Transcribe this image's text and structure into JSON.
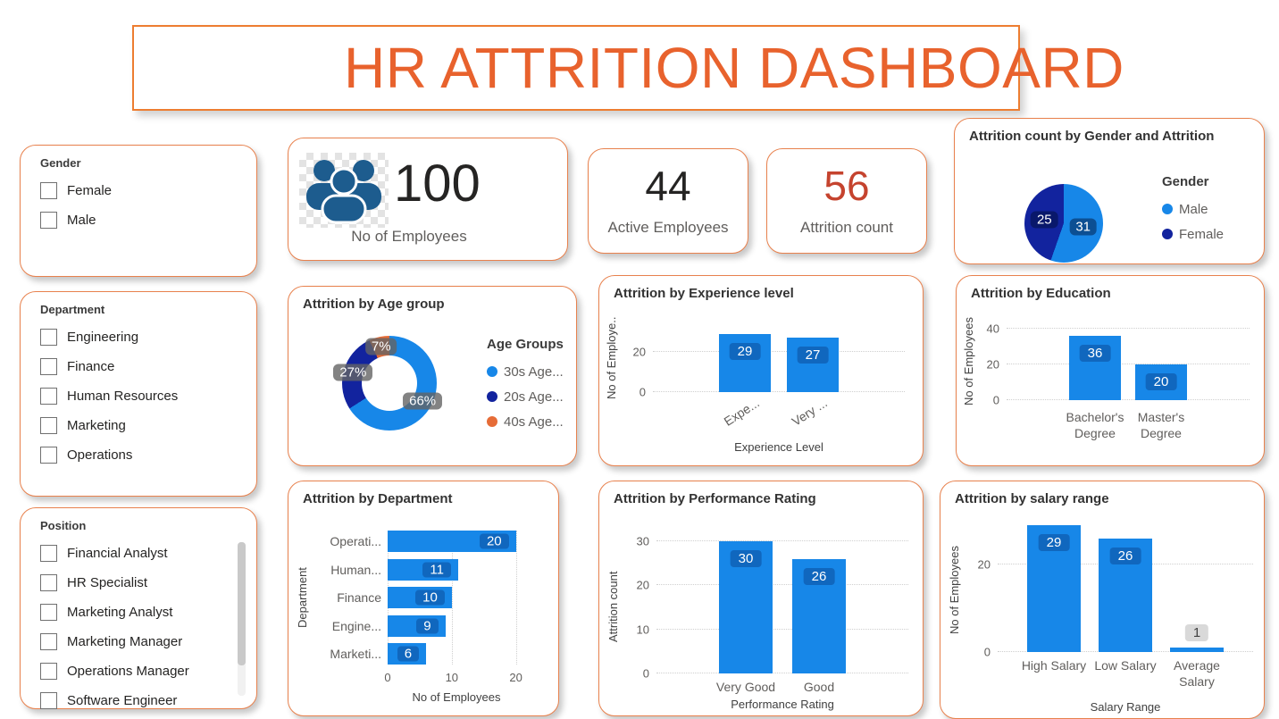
{
  "header": {
    "title": "HR ATTRITION DASHBOARD"
  },
  "filters": [
    {
      "title": "Gender",
      "items": [
        "Female",
        "Male"
      ]
    },
    {
      "title": "Department",
      "items": [
        "Engineering",
        "Finance",
        "Human Resources",
        "Marketing",
        "Operations"
      ]
    },
    {
      "title": "Position",
      "items": [
        "Financial Analyst",
        "HR Specialist",
        "Marketing Analyst",
        "Marketing Manager",
        "Operations Manager",
        "Software Engineer"
      ]
    }
  ],
  "kpis": {
    "employees": {
      "value": "100",
      "label": "No of Employees",
      "icon": "people-icon"
    },
    "active": {
      "value": "44",
      "label": "Active Employees"
    },
    "attrition": {
      "value": "56",
      "label": "Attrition count",
      "color": "#C5432E"
    }
  },
  "colors": {
    "bar_blue": "#1787E8",
    "navy": "#12239E",
    "orange": "#E66C37",
    "card_border": "#E8814D",
    "header_orange": "#E8622D",
    "attrition_red": "#C5432E",
    "icon_blue": "#1D5C8E"
  },
  "chart_data": [
    {
      "type": "pie",
      "title": "Attrition count by Gender and Attrition",
      "legend_title": "Gender",
      "categories": [
        "Male",
        "Female"
      ],
      "values": [
        31,
        25
      ],
      "labels": [
        "31",
        "25"
      ],
      "colors": [
        "#1787E8",
        "#12239E"
      ],
      "legend_position": "right"
    },
    {
      "type": "pie",
      "subtype": "donut",
      "title": "Attrition by Age group",
      "legend_title": "Age Groups",
      "categories": [
        "30s Age...",
        "20s Age...",
        "40s Age..."
      ],
      "values": [
        66,
        27,
        7
      ],
      "labels": [
        "66%",
        "27%",
        "7%"
      ],
      "colors": [
        "#1787E8",
        "#12239E",
        "#E66C37"
      ],
      "legend_position": "right"
    },
    {
      "type": "bar",
      "title": "Attrition by Experience level",
      "categories": [
        "Expe...",
        "Very ..."
      ],
      "values": [
        29,
        27
      ],
      "xlabel": "Experience Level",
      "ylabel": "No of Employe..",
      "yticks": [
        20,
        0
      ],
      "ymax": 36,
      "grid": "dotted"
    },
    {
      "type": "bar",
      "title": "Attrition by Education",
      "categories": [
        "Bachelor's Degree",
        "Master's Degree"
      ],
      "values": [
        36,
        20
      ],
      "xlabel": "",
      "ylabel": "No of Employees",
      "yticks": [
        40,
        20,
        0
      ],
      "ymax": 44,
      "grid": "dotted"
    },
    {
      "type": "bar-horizontal",
      "title": "Attrition by Department",
      "categories": [
        "Operati...",
        "Human...",
        "Finance",
        "Engine...",
        "Marketi..."
      ],
      "values": [
        20,
        11,
        10,
        9,
        6
      ],
      "xlabel": "No of Employees",
      "ylabel": "Department",
      "xticks": [
        0,
        10,
        20
      ],
      "xmax": 22,
      "grid": "dotted"
    },
    {
      "type": "bar",
      "title": "Attrition by Performance Rating",
      "categories": [
        "Very Good",
        "Good"
      ],
      "values": [
        30,
        26
      ],
      "xlabel": "Performance Rating",
      "ylabel": "Attrition count",
      "yticks": [
        30,
        20,
        10,
        0
      ],
      "ymax": 31,
      "grid": "dotted"
    },
    {
      "type": "bar",
      "title": "Attrition by salary range",
      "categories": [
        "High Salary",
        "Low Salary",
        "Average Salary"
      ],
      "values": [
        29,
        26,
        1
      ],
      "xlabel": "Salary Range",
      "ylabel": "No of Employees",
      "yticks": [
        20,
        0
      ],
      "ymax": 30,
      "grid": "dotted"
    }
  ]
}
